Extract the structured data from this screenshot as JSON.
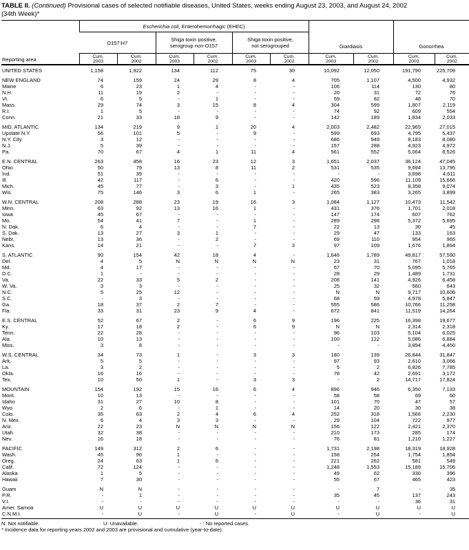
{
  "title": {
    "bold": "TABLE II.",
    "italic": "(Continued)",
    "rest": "Provisional cases of selected notifiable diseases, United States, weeks ending August 23, 2003, and August 24, 2002",
    "line2": "(34th Week)*"
  },
  "header": {
    "reporting_area": "Reporting area",
    "ehec_group": {
      "italic": "Escherichia coli,",
      "rest": " Enterohemorrhagic (EHEC)"
    },
    "subgroups": [
      {
        "line1": "O157:H7",
        "line2": ""
      },
      {
        "line1": "Shiga toxin positive,",
        "line2": "serogroup non-O157"
      },
      {
        "line1": "Shiga toxin positive,",
        "line2": "not serogrouped"
      }
    ],
    "giardiasis": "Giardiasis",
    "gonorrhea": "Gonorrhea",
    "cum_label": "Cum.",
    "years": [
      "2003",
      "2002"
    ]
  },
  "rows": [
    {
      "area": "UNITED STATES",
      "type": "total",
      "gap_before": false,
      "values": [
        "1,158",
        "1,922",
        "134",
        "112",
        "75",
        "30",
        "10,092",
        "12,050",
        "191,790",
        "225,709"
      ]
    },
    {
      "area": "NEW ENGLAND",
      "type": "region",
      "gap_before": true,
      "values": [
        "74",
        "159",
        "24",
        "29",
        "8",
        "4",
        "705",
        "1,107",
        "4,500",
        "4,932"
      ]
    },
    {
      "area": "Maine",
      "type": "state",
      "gap_before": false,
      "values": [
        "6",
        "23",
        "1",
        "4",
        "-",
        "-",
        "106",
        "114",
        "130",
        "80"
      ]
    },
    {
      "area": "N.H.",
      "type": "state",
      "gap_before": false,
      "values": [
        "11",
        "19",
        "2",
        "-",
        "-",
        "-",
        "20",
        "31",
        "72",
        "76"
      ]
    },
    {
      "area": "Vt.",
      "type": "state",
      "gap_before": false,
      "values": [
        "6",
        "5",
        "-",
        "1",
        "-",
        "-",
        "59",
        "82",
        "48",
        "70"
      ]
    },
    {
      "area": "Mass.",
      "type": "state",
      "gap_before": false,
      "values": [
        "29",
        "74",
        "3",
        "15",
        "8",
        "4",
        "304",
        "599",
        "1,807",
        "2,119"
      ]
    },
    {
      "area": "R.I.",
      "type": "state",
      "gap_before": false,
      "values": [
        "1",
        "5",
        "-",
        "-",
        "-",
        "-",
        "74",
        "92",
        "609",
        "554"
      ]
    },
    {
      "area": "Conn.",
      "type": "state",
      "gap_before": false,
      "values": [
        "21",
        "33",
        "18",
        "9",
        "-",
        "-",
        "142",
        "189",
        "1,834",
        "2,033"
      ]
    },
    {
      "area": "MID. ATLANTIC",
      "type": "region",
      "gap_before": true,
      "values": [
        "134",
        "219",
        "9",
        "1",
        "20",
        "4",
        "2,003",
        "2,482",
        "22,965",
        "27,015"
      ]
    },
    {
      "area": "Upstate N.Y.",
      "type": "state",
      "gap_before": false,
      "values": [
        "56",
        "101",
        "5",
        "-",
        "9",
        "-",
        "599",
        "693",
        "4,795",
        "5,437"
      ]
    },
    {
      "area": "N.Y. City",
      "type": "state",
      "gap_before": false,
      "values": [
        "3",
        "12",
        "-",
        "-",
        "-",
        "-",
        "686",
        "949",
        "8,183",
        "8,080"
      ]
    },
    {
      "area": "N.J.",
      "type": "state",
      "gap_before": false,
      "values": [
        "5",
        "39",
        "-",
        "-",
        "-",
        "-",
        "157",
        "288",
        "4,923",
        "4,972"
      ]
    },
    {
      "area": "Pa.",
      "type": "state",
      "gap_before": false,
      "values": [
        "70",
        "67",
        "4",
        "1",
        "11",
        "4",
        "561",
        "552",
        "5,064",
        "8,526"
      ]
    },
    {
      "area": "E.N. CENTRAL",
      "type": "region",
      "gap_before": true,
      "values": [
        "263",
        "458",
        "16",
        "23",
        "12",
        "3",
        "1,651",
        "2,037",
        "36,124",
        "47,045"
      ]
    },
    {
      "area": "Ohio",
      "type": "state",
      "gap_before": false,
      "values": [
        "50",
        "79",
        "13",
        "8",
        "11",
        "2",
        "531",
        "535",
        "9,694",
        "13,795"
      ]
    },
    {
      "area": "Ind.",
      "type": "state",
      "gap_before": false,
      "values": [
        "51",
        "39",
        "-",
        "-",
        "-",
        "-",
        "-",
        "-",
        "3,698",
        "4,611"
      ]
    },
    {
      "area": "Ill.",
      "type": "state",
      "gap_before": false,
      "values": [
        "42",
        "117",
        "-",
        "6",
        "-",
        "-",
        "420",
        "596",
        "11,109",
        "15,666"
      ]
    },
    {
      "area": "Mich.",
      "type": "state",
      "gap_before": false,
      "values": [
        "45",
        "77",
        "-",
        "3",
        "-",
        "1",
        "435",
        "523",
        "8,358",
        "9,074"
      ]
    },
    {
      "area": "Wis.",
      "type": "state",
      "gap_before": false,
      "values": [
        "75",
        "146",
        "3",
        "6",
        "1",
        "-",
        "265",
        "383",
        "3,265",
        "3,899"
      ]
    },
    {
      "area": "W.N. CENTRAL",
      "type": "region",
      "gap_before": true,
      "values": [
        "208",
        "288",
        "23",
        "19",
        "16",
        "3",
        "1,084",
        "1,127",
        "10,473",
        "11,542"
      ]
    },
    {
      "area": "Minn.",
      "type": "state",
      "gap_before": false,
      "values": [
        "63",
        "92",
        "13",
        "16",
        "1",
        "-",
        "431",
        "376",
        "1,701",
        "2,018"
      ]
    },
    {
      "area": "Iowa",
      "type": "state",
      "gap_before": false,
      "values": [
        "45",
        "67",
        "-",
        "-",
        "-",
        "-",
        "147",
        "174",
        "607",
        "762"
      ]
    },
    {
      "area": "Mo.",
      "type": "state",
      "gap_before": false,
      "values": [
        "54",
        "41",
        "7",
        "-",
        "1",
        "-",
        "289",
        "298",
        "5,372",
        "5,695"
      ]
    },
    {
      "area": "N. Dak.",
      "type": "state",
      "gap_before": false,
      "values": [
        "6",
        "4",
        "-",
        "-",
        "7",
        "-",
        "22",
        "13",
        "30",
        "45"
      ]
    },
    {
      "area": "S. Dak.",
      "type": "state",
      "gap_before": false,
      "values": [
        "13",
        "27",
        "3",
        "1",
        "-",
        "-",
        "29",
        "47",
        "133",
        "163"
      ]
    },
    {
      "area": "Nebr.",
      "type": "state",
      "gap_before": false,
      "values": [
        "13",
        "36",
        "-",
        "2",
        "-",
        "-",
        "69",
        "110",
        "954",
        "965"
      ]
    },
    {
      "area": "Kans.",
      "type": "state",
      "gap_before": false,
      "values": [
        "14",
        "21",
        "-",
        "-",
        "7",
        "3",
        "97",
        "109",
        "1,676",
        "1,894"
      ]
    },
    {
      "area": "S. ATLANTIC",
      "type": "region",
      "gap_before": true,
      "values": [
        "90",
        "154",
        "42",
        "18",
        "4",
        "-",
        "1,646",
        "1,789",
        "49,817",
        "57,590"
      ]
    },
    {
      "area": "Del.",
      "type": "state",
      "gap_before": false,
      "values": [
        "4",
        "5",
        "N",
        "N",
        "N",
        "N",
        "23",
        "31",
        "767",
        "1,018"
      ]
    },
    {
      "area": "Md.",
      "type": "state",
      "gap_before": false,
      "values": [
        "4",
        "17",
        "-",
        "-",
        "-",
        "-",
        "67",
        "70",
        "5,095",
        "5,765"
      ]
    },
    {
      "area": "D.C.",
      "type": "state",
      "gap_before": false,
      "values": [
        "1",
        "-",
        "-",
        "-",
        "-",
        "-",
        "28",
        "29",
        "1,489",
        "1,731"
      ]
    },
    {
      "area": "Va.",
      "type": "state",
      "gap_before": false,
      "values": [
        "22",
        "33",
        "5",
        "2",
        "-",
        "-",
        "208",
        "141",
        "4,926",
        "6,458"
      ]
    },
    {
      "area": "W. Va.",
      "type": "state",
      "gap_before": false,
      "values": [
        "3",
        "3",
        "-",
        "-",
        "-",
        "-",
        "25",
        "32",
        "560",
        "643"
      ]
    },
    {
      "area": "N.C.",
      "type": "state",
      "gap_before": false,
      "values": [
        "5",
        "25",
        "12",
        "-",
        "-",
        "-",
        "N",
        "N",
        "9,717",
        "10,606"
      ]
    },
    {
      "area": "S.C.",
      "type": "state",
      "gap_before": false,
      "values": [
        "-",
        "3",
        "-",
        "-",
        "-",
        "-",
        "68",
        "59",
        "4,978",
        "5,847"
      ]
    },
    {
      "area": "Ga.",
      "type": "state",
      "gap_before": false,
      "values": [
        "18",
        "37",
        "2",
        "7",
        "-",
        "-",
        "555",
        "586",
        "10,766",
        "11,258"
      ]
    },
    {
      "area": "Fla.",
      "type": "state",
      "gap_before": false,
      "values": [
        "33",
        "31",
        "23",
        "9",
        "4",
        "-",
        "672",
        "841",
        "11,519",
        "14,264"
      ]
    },
    {
      "area": "E.S. CENTRAL",
      "type": "region",
      "gap_before": true,
      "values": [
        "52",
        "67",
        "2",
        "-",
        "6",
        "9",
        "196",
        "225",
        "16,398",
        "19,677"
      ]
    },
    {
      "area": "Ky.",
      "type": "state",
      "gap_before": false,
      "values": [
        "17",
        "18",
        "2",
        "-",
        "6",
        "9",
        "N",
        "N",
        "2,314",
        "2,318"
      ]
    },
    {
      "area": "Tenn.",
      "type": "state",
      "gap_before": false,
      "values": [
        "22",
        "28",
        "-",
        "-",
        "-",
        "-",
        "96",
        "103",
        "5,104",
        "6,025"
      ]
    },
    {
      "area": "Ala.",
      "type": "state",
      "gap_before": false,
      "values": [
        "10",
        "13",
        "-",
        "-",
        "-",
        "-",
        "100",
        "122",
        "5,086",
        "6,884"
      ]
    },
    {
      "area": "Miss.",
      "type": "state",
      "gap_before": false,
      "values": [
        "3",
        "8",
        "-",
        "-",
        "-",
        "-",
        "-",
        "-",
        "3,894",
        "4,450"
      ]
    },
    {
      "area": "W.S. CENTRAL",
      "type": "region",
      "gap_before": true,
      "values": [
        "34",
        "73",
        "1",
        "-",
        "3",
        "3",
        "180",
        "139",
        "26,844",
        "31,847"
      ]
    },
    {
      "area": "Ark.",
      "type": "state",
      "gap_before": false,
      "values": [
        "5",
        "5",
        "-",
        "-",
        "-",
        "-",
        "97",
        "93",
        "2,610",
        "3,066"
      ]
    },
    {
      "area": "La.",
      "type": "state",
      "gap_before": false,
      "values": [
        "3",
        "2",
        "-",
        "-",
        "-",
        "-",
        "5",
        "2",
        "6,826",
        "7,785"
      ]
    },
    {
      "area": "Okla.",
      "type": "state",
      "gap_before": false,
      "values": [
        "16",
        "16",
        "-",
        "-",
        "-",
        "-",
        "78",
        "42",
        "2,691",
        "3,172"
      ]
    },
    {
      "area": "Tex.",
      "type": "state",
      "gap_before": false,
      "values": [
        "10",
        "50",
        "1",
        "-",
        "3",
        "3",
        "-",
        "2",
        "14,717",
        "17,824"
      ]
    },
    {
      "area": "MOUNTAIN",
      "type": "region",
      "gap_before": true,
      "values": [
        "154",
        "192",
        "15",
        "16",
        "6",
        "4",
        "896",
        "946",
        "6,350",
        "7,133"
      ]
    },
    {
      "area": "Mont.",
      "type": "state",
      "gap_before": false,
      "values": [
        "10",
        "13",
        "-",
        "-",
        "-",
        "-",
        "58",
        "58",
        "69",
        "60"
      ]
    },
    {
      "area": "Idaho",
      "type": "state",
      "gap_before": false,
      "values": [
        "31",
        "27",
        "10",
        "8",
        "-",
        "-",
        "101",
        "70",
        "47",
        "57"
      ]
    },
    {
      "area": "Wyo.",
      "type": "state",
      "gap_before": false,
      "values": [
        "2",
        "6",
        "-",
        "1",
        "-",
        "-",
        "14",
        "20",
        "30",
        "38"
      ]
    },
    {
      "area": "Colo.",
      "type": "state",
      "gap_before": false,
      "values": [
        "35",
        "63",
        "2",
        "4",
        "6",
        "4",
        "252",
        "318",
        "1,566",
        "2,230"
      ]
    },
    {
      "area": "N. Mex.",
      "type": "state",
      "gap_before": false,
      "values": [
        "6",
        "4",
        "3",
        "3",
        "-",
        "-",
        "29",
        "104",
        "722",
        "977"
      ]
    },
    {
      "area": "Ariz.",
      "type": "state",
      "gap_before": false,
      "values": [
        "22",
        "23",
        "N",
        "N",
        "N",
        "N",
        "156",
        "122",
        "2,421",
        "2,370"
      ]
    },
    {
      "area": "Utah",
      "type": "state",
      "gap_before": false,
      "values": [
        "32",
        "38",
        "-",
        "-",
        "-",
        "-",
        "210",
        "173",
        "285",
        "174"
      ]
    },
    {
      "area": "Nev.",
      "type": "state",
      "gap_before": false,
      "values": [
        "16",
        "18",
        "-",
        "-",
        "-",
        "-",
        "76",
        "81",
        "1,210",
        "1,227"
      ]
    },
    {
      "area": "PACIFIC",
      "type": "region",
      "gap_before": true,
      "values": [
        "149",
        "312",
        "2",
        "6",
        "-",
        "-",
        "1,731",
        "2,198",
        "18,319",
        "18,928"
      ]
    },
    {
      "area": "Wash.",
      "type": "state",
      "gap_before": false,
      "values": [
        "45",
        "90",
        "1",
        "-",
        "-",
        "-",
        "158",
        "254",
        "1,754",
        "1,854"
      ]
    },
    {
      "area": "Oreg.",
      "type": "state",
      "gap_before": false,
      "values": [
        "24",
        "63",
        "1",
        "6",
        "-",
        "-",
        "221",
        "262",
        "581",
        "549"
      ]
    },
    {
      "area": "Calif.",
      "type": "state",
      "gap_before": false,
      "values": [
        "72",
        "124",
        "-",
        "-",
        "-",
        "-",
        "1,248",
        "1,553",
        "15,189",
        "15,706"
      ]
    },
    {
      "area": "Alaska",
      "type": "state",
      "gap_before": false,
      "values": [
        "1",
        "5",
        "-",
        "-",
        "-",
        "-",
        "49",
        "62",
        "330",
        "396"
      ]
    },
    {
      "area": "Hawaii",
      "type": "state",
      "gap_before": false,
      "values": [
        "7",
        "30",
        "-",
        "-",
        "-",
        "-",
        "55",
        "67",
        "465",
        "423"
      ]
    },
    {
      "area": "Guam",
      "type": "territory",
      "gap_before": true,
      "values": [
        "N",
        "N",
        "-",
        "-",
        "-",
        "-",
        "-",
        "7",
        "-",
        "35"
      ]
    },
    {
      "area": "P.R.",
      "type": "territory",
      "gap_before": false,
      "values": [
        "-",
        "1",
        "-",
        "-",
        "-",
        "-",
        "35",
        "45",
        "137",
        "243"
      ]
    },
    {
      "area": "V.I.",
      "type": "territory",
      "gap_before": false,
      "values": [
        "-",
        "-",
        "-",
        "-",
        "-",
        "-",
        "-",
        "-",
        "36",
        "31"
      ]
    },
    {
      "area": "Amer. Samoa",
      "type": "territory",
      "gap_before": false,
      "values": [
        "U",
        "U",
        "U",
        "U",
        "U",
        "U",
        "U",
        "U",
        "U",
        "U"
      ]
    },
    {
      "area": "C.N.M.I.",
      "type": "territory",
      "gap_before": false,
      "values": [
        "-",
        "U",
        "-",
        "U",
        "-",
        "U",
        "-",
        "U",
        "-",
        "U"
      ]
    }
  ],
  "footnotes": {
    "item1": "N: Not notifiable.",
    "item2": "U: Unavailable.",
    "item3": "- : No reported cases.",
    "line2": "* Incidence data for reporting years 2002 and 2003 are provisional and cumulative (year-to-date)."
  }
}
